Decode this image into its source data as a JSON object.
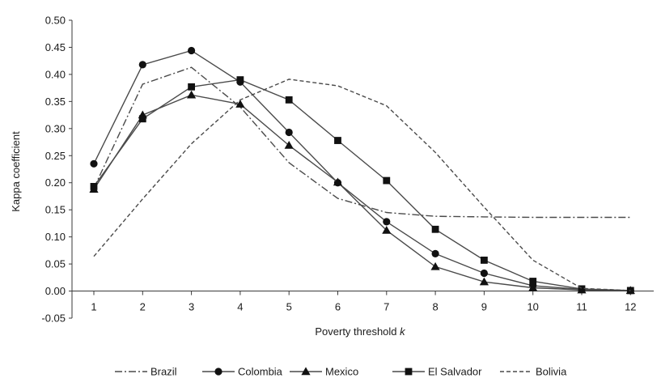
{
  "chart_data": {
    "type": "line",
    "title": "",
    "xlabel": "Poverty threshold k",
    "xlabel_main": "Poverty threshold ",
    "xlabel_var": "k",
    "ylabel": "Kappa coefficient",
    "x": [
      1,
      2,
      3,
      4,
      5,
      6,
      7,
      8,
      9,
      10,
      11,
      12
    ],
    "x_tick_labels": [
      "1",
      "2",
      "3",
      "4",
      "5",
      "6",
      "7",
      "8",
      "9",
      "10",
      "11",
      "12"
    ],
    "ylim": [
      -0.05,
      0.5
    ],
    "y_ticks": [
      0.5,
      0.45,
      0.4,
      0.35,
      0.3,
      0.25,
      0.2,
      0.15,
      0.1,
      0.05,
      0.0,
      -0.05
    ],
    "y_tick_labels": [
      "0.50",
      "0.45",
      "0.40",
      "0.35",
      "0.30",
      "0.25",
      "0.20",
      "0.15",
      "0.10",
      "0.05",
      "0.00",
      "-0.05"
    ],
    "grid": false,
    "legend_position": "bottom",
    "series": [
      {
        "name": "Brazil",
        "dash": "dashdot",
        "marker": "none",
        "values": [
          0.19,
          0.382,
          0.413,
          0.34,
          0.237,
          0.171,
          0.145,
          0.138,
          0.137,
          0.136,
          0.136,
          0.136
        ]
      },
      {
        "name": "Colombia",
        "dash": "solid",
        "marker": "circle",
        "values": [
          0.235,
          0.418,
          0.444,
          0.386,
          0.293,
          0.2,
          0.128,
          0.069,
          0.033,
          0.01,
          0.003,
          0.001
        ]
      },
      {
        "name": "Mexico",
        "dash": "solid",
        "marker": "triangle",
        "values": [
          0.188,
          0.325,
          0.362,
          0.345,
          0.269,
          0.201,
          0.112,
          0.045,
          0.017,
          0.006,
          0.002,
          0.001
        ]
      },
      {
        "name": "El Salvador",
        "dash": "solid",
        "marker": "square",
        "values": [
          0.193,
          0.318,
          0.377,
          0.39,
          0.353,
          0.278,
          0.204,
          0.114,
          0.057,
          0.018,
          0.004,
          0.001
        ]
      },
      {
        "name": "Bolivia",
        "dash": "dashed",
        "marker": "none",
        "values": [
          0.064,
          0.17,
          0.272,
          0.353,
          0.391,
          0.379,
          0.342,
          0.256,
          0.155,
          0.057,
          0.005,
          0.001
        ]
      }
    ]
  }
}
